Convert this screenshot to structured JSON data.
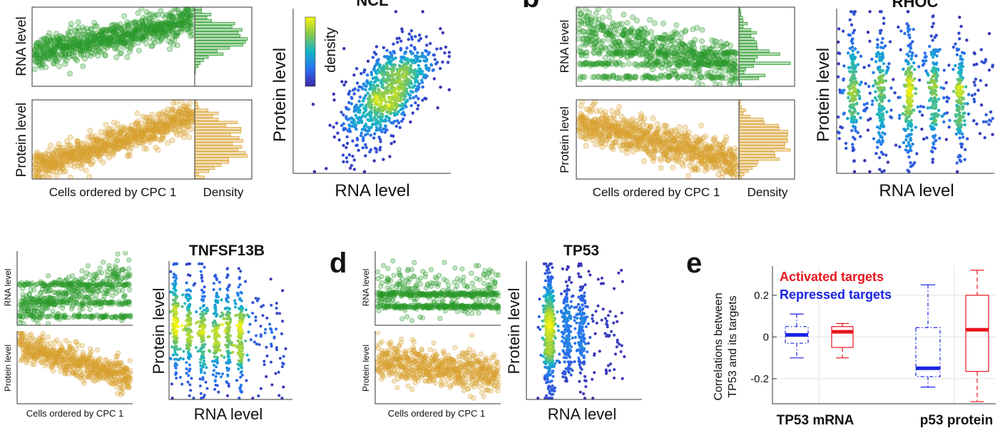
{
  "panel_letters": {
    "b": "b",
    "d": "d",
    "e": "e"
  },
  "chart_data": [
    {
      "id": "ncl",
      "type": "scatter",
      "title": "NCL",
      "xlabel": "Cells ordered by CPC 1",
      "rna_ylabel": "RNA level",
      "protein_ylabel": "Protein level",
      "density_label": "Density",
      "colorbar_label": "density",
      "density_xlabel": "RNA level",
      "density_ylabel": "Protein level",
      "rna_color": "#2a9a2a",
      "protein_color": "#d9a030",
      "rna_trend": [
        0.42,
        0.82
      ],
      "protein_trend": [
        0.15,
        0.78
      ],
      "scatter_correlation": 0.55
    },
    {
      "id": "rhoc",
      "type": "scatter",
      "title": "RHOC",
      "xlabel": "Cells ordered by CPC 1",
      "rna_ylabel": "RNA level",
      "protein_ylabel": "Protein level",
      "density_label": "Density",
      "density_xlabel": "RNA level",
      "density_ylabel": "Protein level",
      "rna_color": "#2a9a2a",
      "protein_color": "#d9a030",
      "rna_trend": [
        0.75,
        0.25
      ],
      "protein_trend": [
        0.72,
        0.22
      ],
      "scatter_correlation": 0.1
    },
    {
      "id": "tnfsf13b",
      "type": "scatter",
      "title": "TNFSF13B",
      "xlabel": "Cells ordered by CPC 1",
      "rna_ylabel": "RNA level",
      "protein_ylabel": "Protein level",
      "density_xlabel": "RNA level",
      "density_ylabel": "Protein level",
      "rna_color": "#2a9a2a",
      "protein_color": "#d9a030",
      "rna_trend": [
        0.2,
        0.7
      ],
      "protein_trend": [
        0.8,
        0.35
      ],
      "scatter_correlation": -0.1
    },
    {
      "id": "tp53",
      "type": "scatter",
      "title": "TP53",
      "xlabel": "Cells ordered by CPC 1",
      "rna_ylabel": "RNA level",
      "protein_ylabel": "Protein level",
      "density_xlabel": "RNA level",
      "density_ylabel": "Protein level",
      "rna_color": "#2a9a2a",
      "protein_color": "#d9a030",
      "rna_trend": [
        0.45,
        0.45
      ],
      "protein_trend": [
        0.6,
        0.4
      ],
      "scatter_correlation": 0.0
    },
    {
      "id": "boxplot",
      "type": "box",
      "ylabel_line1": "Correlations between",
      "ylabel_line2": "TP53 and its targets",
      "ylim": [
        -0.32,
        0.34
      ],
      "yticks": [
        -0.2,
        0,
        0.2
      ],
      "ytick_labels": [
        "-0.2",
        "0",
        "0.2"
      ],
      "categories": [
        "TP53 mRNA",
        "p53 protein"
      ],
      "legend": [
        {
          "name": "Activated targets",
          "color": "#e8141c"
        },
        {
          "name": "Repressed targets",
          "color": "#1a24e6"
        }
      ],
      "series": [
        {
          "name": "Repressed targets",
          "color": "#1a24e6",
          "boxes": [
            {
              "min": -0.1,
              "q1": -0.03,
              "median": 0.01,
              "q3": 0.05,
              "max": 0.11
            },
            {
              "min": -0.24,
              "q1": -0.19,
              "median": -0.15,
              "q3": 0.045,
              "max": 0.25
            }
          ]
        },
        {
          "name": "Activated targets",
          "color": "#e8141c",
          "boxes": [
            {
              "min": -0.1,
              "q1": -0.05,
              "median": 0.025,
              "q3": 0.05,
              "max": 0.065
            },
            {
              "min": -0.31,
              "q1": -0.165,
              "median": 0.035,
              "q3": 0.2,
              "max": 0.32
            }
          ]
        }
      ]
    }
  ]
}
